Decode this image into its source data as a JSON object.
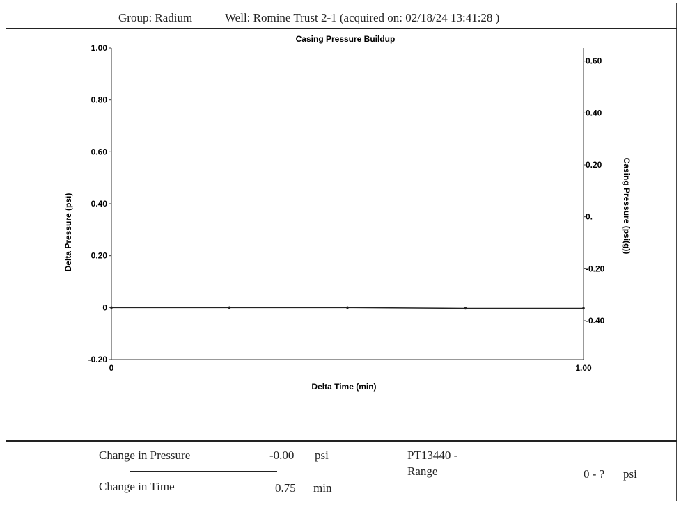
{
  "header": {
    "group": "Group: Radium",
    "well": "Well: Romine Trust 2-1 (acquired on: 02/18/24 13:41:28 )"
  },
  "chart_data": {
    "type": "line",
    "title": "Casing Pressure Buildup",
    "xlabel": "Delta Time (min)",
    "ylabel": "Delta Pressure (psi)",
    "y2label": "Casing Pressure (psi(g))",
    "xlim": [
      0,
      1.0
    ],
    "ylim": [
      -0.2,
      1.0
    ],
    "y2lim": [
      -0.55,
      0.65
    ],
    "x_ticks": [
      "0",
      "1.00"
    ],
    "y_ticks": [
      {
        "value": 1.0,
        "label": "1.00"
      },
      {
        "value": 0.8,
        "label": "0.80"
      },
      {
        "value": 0.6,
        "label": "0.60"
      },
      {
        "value": 0.4,
        "label": "0.40"
      },
      {
        "value": 0.2,
        "label": "0.20"
      },
      {
        "value": 0.0,
        "label": "0"
      },
      {
        "value": -0.2,
        "label": "-0.20"
      }
    ],
    "y2_ticks": [
      {
        "value": 0.6,
        "label": "0.60"
      },
      {
        "value": 0.4,
        "label": "0.40"
      },
      {
        "value": 0.2,
        "label": "0.20"
      },
      {
        "value": 0.0,
        "label": "0."
      },
      {
        "value": -0.2,
        "label": "-0.20"
      },
      {
        "value": -0.4,
        "label": "-0.40"
      }
    ],
    "series": [
      {
        "color": "#222222",
        "x": [
          0,
          0.25,
          0.5,
          0.75,
          1.0
        ],
        "y": [
          0.0,
          0.0,
          0.0,
          -0.003,
          -0.003
        ]
      }
    ],
    "grid": false
  },
  "footer": {
    "change_pressure_label": "Change in Pressure",
    "change_pressure_value": "-0.00",
    "change_pressure_unit": "psi",
    "change_time_label": "Change in Time",
    "change_time_value": "0.75",
    "change_time_unit": "min",
    "sensor_id": "PT13440 -",
    "range_label": "Range",
    "range_value": "0 - ?",
    "range_unit": "psi"
  }
}
